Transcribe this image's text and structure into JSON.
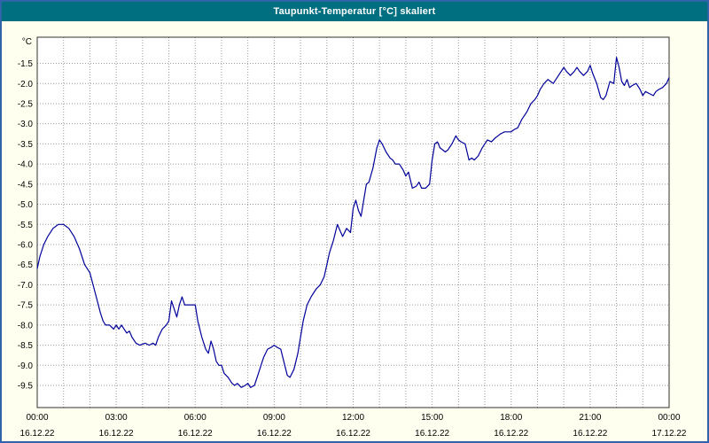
{
  "window": {
    "title": "Taupunkt-Temperatur [°C] skaliert"
  },
  "chart_data": {
    "type": "line",
    "title": "Taupunkt-Temperatur [°C] skaliert",
    "ylabel": "°C",
    "xlabel": "",
    "grid": "dotted",
    "legend": "none",
    "line_color": "#000099",
    "plot_background": "#ffffff",
    "outer_background": "#fffff0",
    "titlebar_color": "#006f80",
    "ylim": [
      -10.05,
      -0.85
    ],
    "xlim_hours": [
      0,
      24
    ],
    "y_tick_values": [
      -1.5,
      -2.0,
      -2.5,
      -3.0,
      -3.5,
      -4.0,
      -4.5,
      -5.0,
      -5.5,
      -6.0,
      -6.5,
      -7.0,
      -7.5,
      -8.0,
      -8.5,
      -9.0,
      -9.5
    ],
    "x_minor_grid_every_hours": 1,
    "x_ticks": [
      {
        "hour": 0,
        "time": "00:00",
        "date": "16.12.22"
      },
      {
        "hour": 3,
        "time": "03:00",
        "date": "16.12.22"
      },
      {
        "hour": 6,
        "time": "06:00",
        "date": "16.12.22"
      },
      {
        "hour": 9,
        "time": "09:00",
        "date": "16.12.22"
      },
      {
        "hour": 12,
        "time": "12:00",
        "date": "16.12.22"
      },
      {
        "hour": 15,
        "time": "15:00",
        "date": "16.12.22"
      },
      {
        "hour": 18,
        "time": "18:00",
        "date": "16.12.22"
      },
      {
        "hour": 21,
        "time": "21:00",
        "date": "16.12.22"
      },
      {
        "hour": 24,
        "time": "00:00",
        "date": "17.12.22"
      }
    ],
    "points": [
      [
        0.0,
        -6.6
      ],
      [
        0.1,
        -6.3
      ],
      [
        0.25,
        -6.0
      ],
      [
        0.4,
        -5.8
      ],
      [
        0.6,
        -5.6
      ],
      [
        0.8,
        -5.5
      ],
      [
        1.0,
        -5.5
      ],
      [
        1.2,
        -5.6
      ],
      [
        1.4,
        -5.8
      ],
      [
        1.6,
        -6.1
      ],
      [
        1.8,
        -6.5
      ],
      [
        2.0,
        -6.7
      ],
      [
        2.2,
        -7.2
      ],
      [
        2.4,
        -7.7
      ],
      [
        2.5,
        -7.9
      ],
      [
        2.6,
        -8.0
      ],
      [
        2.75,
        -8.0
      ],
      [
        2.9,
        -8.1
      ],
      [
        3.0,
        -8.0
      ],
      [
        3.1,
        -8.1
      ],
      [
        3.2,
        -8.0
      ],
      [
        3.4,
        -8.2
      ],
      [
        3.5,
        -8.15
      ],
      [
        3.6,
        -8.3
      ],
      [
        3.75,
        -8.45
      ],
      [
        3.9,
        -8.5
      ],
      [
        4.1,
        -8.45
      ],
      [
        4.25,
        -8.5
      ],
      [
        4.4,
        -8.45
      ],
      [
        4.5,
        -8.5
      ],
      [
        4.6,
        -8.3
      ],
      [
        4.75,
        -8.1
      ],
      [
        4.9,
        -8.0
      ],
      [
        5.0,
        -7.9
      ],
      [
        5.1,
        -7.4
      ],
      [
        5.2,
        -7.6
      ],
      [
        5.3,
        -7.8
      ],
      [
        5.4,
        -7.5
      ],
      [
        5.5,
        -7.3
      ],
      [
        5.6,
        -7.5
      ],
      [
        5.75,
        -7.5
      ],
      [
        5.9,
        -7.5
      ],
      [
        6.0,
        -7.5
      ],
      [
        6.1,
        -7.9
      ],
      [
        6.25,
        -8.3
      ],
      [
        6.4,
        -8.6
      ],
      [
        6.5,
        -8.7
      ],
      [
        6.6,
        -8.4
      ],
      [
        6.7,
        -8.6
      ],
      [
        6.8,
        -8.9
      ],
      [
        6.9,
        -9.0
      ],
      [
        7.0,
        -9.0
      ],
      [
        7.1,
        -9.2
      ],
      [
        7.25,
        -9.3
      ],
      [
        7.4,
        -9.45
      ],
      [
        7.5,
        -9.5
      ],
      [
        7.6,
        -9.45
      ],
      [
        7.75,
        -9.55
      ],
      [
        7.9,
        -9.5
      ],
      [
        8.0,
        -9.45
      ],
      [
        8.1,
        -9.55
      ],
      [
        8.25,
        -9.5
      ],
      [
        8.4,
        -9.2
      ],
      [
        8.5,
        -9.0
      ],
      [
        8.6,
        -8.8
      ],
      [
        8.75,
        -8.6
      ],
      [
        8.9,
        -8.55
      ],
      [
        9.0,
        -8.5
      ],
      [
        9.1,
        -8.55
      ],
      [
        9.25,
        -8.6
      ],
      [
        9.4,
        -9.0
      ],
      [
        9.5,
        -9.25
      ],
      [
        9.6,
        -9.3
      ],
      [
        9.75,
        -9.1
      ],
      [
        9.9,
        -8.7
      ],
      [
        10.0,
        -8.3
      ],
      [
        10.1,
        -7.9
      ],
      [
        10.25,
        -7.5
      ],
      [
        10.4,
        -7.3
      ],
      [
        10.5,
        -7.2
      ],
      [
        10.6,
        -7.1
      ],
      [
        10.75,
        -7.0
      ],
      [
        10.9,
        -6.8
      ],
      [
        11.0,
        -6.5
      ],
      [
        11.1,
        -6.2
      ],
      [
        11.25,
        -5.9
      ],
      [
        11.4,
        -5.5
      ],
      [
        11.5,
        -5.65
      ],
      [
        11.6,
        -5.8
      ],
      [
        11.75,
        -5.6
      ],
      [
        11.9,
        -5.7
      ],
      [
        12.0,
        -5.1
      ],
      [
        12.1,
        -4.9
      ],
      [
        12.2,
        -5.15
      ],
      [
        12.3,
        -5.3
      ],
      [
        12.4,
        -4.9
      ],
      [
        12.5,
        -4.5
      ],
      [
        12.6,
        -4.45
      ],
      [
        12.75,
        -4.1
      ],
      [
        12.9,
        -3.6
      ],
      [
        13.0,
        -3.4
      ],
      [
        13.1,
        -3.5
      ],
      [
        13.25,
        -3.7
      ],
      [
        13.4,
        -3.85
      ],
      [
        13.5,
        -3.9
      ],
      [
        13.6,
        -4.0
      ],
      [
        13.75,
        -4.0
      ],
      [
        13.9,
        -4.15
      ],
      [
        14.0,
        -4.3
      ],
      [
        14.1,
        -4.2
      ],
      [
        14.25,
        -4.6
      ],
      [
        14.4,
        -4.55
      ],
      [
        14.5,
        -4.45
      ],
      [
        14.6,
        -4.6
      ],
      [
        14.75,
        -4.6
      ],
      [
        14.9,
        -4.5
      ],
      [
        15.0,
        -3.9
      ],
      [
        15.1,
        -3.5
      ],
      [
        15.2,
        -3.45
      ],
      [
        15.3,
        -3.6
      ],
      [
        15.5,
        -3.7
      ],
      [
        15.6,
        -3.65
      ],
      [
        15.75,
        -3.5
      ],
      [
        15.9,
        -3.3
      ],
      [
        16.0,
        -3.4
      ],
      [
        16.1,
        -3.45
      ],
      [
        16.25,
        -3.5
      ],
      [
        16.4,
        -3.9
      ],
      [
        16.5,
        -3.85
      ],
      [
        16.6,
        -3.9
      ],
      [
        16.75,
        -3.8
      ],
      [
        16.9,
        -3.6
      ],
      [
        17.0,
        -3.5
      ],
      [
        17.1,
        -3.4
      ],
      [
        17.25,
        -3.45
      ],
      [
        17.4,
        -3.35
      ],
      [
        17.5,
        -3.3
      ],
      [
        17.6,
        -3.25
      ],
      [
        17.75,
        -3.2
      ],
      [
        17.9,
        -3.2
      ],
      [
        18.0,
        -3.2
      ],
      [
        18.1,
        -3.15
      ],
      [
        18.25,
        -3.1
      ],
      [
        18.4,
        -2.9
      ],
      [
        18.5,
        -2.8
      ],
      [
        18.6,
        -2.7
      ],
      [
        18.75,
        -2.5
      ],
      [
        18.9,
        -2.4
      ],
      [
        19.0,
        -2.3
      ],
      [
        19.1,
        -2.15
      ],
      [
        19.25,
        -2.0
      ],
      [
        19.4,
        -1.9
      ],
      [
        19.5,
        -1.95
      ],
      [
        19.6,
        -2.0
      ],
      [
        19.75,
        -1.85
      ],
      [
        19.9,
        -1.7
      ],
      [
        20.0,
        -1.6
      ],
      [
        20.1,
        -1.7
      ],
      [
        20.25,
        -1.8
      ],
      [
        20.4,
        -1.7
      ],
      [
        20.5,
        -1.6
      ],
      [
        20.6,
        -1.7
      ],
      [
        20.75,
        -1.8
      ],
      [
        20.9,
        -1.7
      ],
      [
        21.0,
        -1.55
      ],
      [
        21.1,
        -1.75
      ],
      [
        21.25,
        -2.0
      ],
      [
        21.4,
        -2.35
      ],
      [
        21.5,
        -2.4
      ],
      [
        21.6,
        -2.3
      ],
      [
        21.75,
        -1.95
      ],
      [
        21.9,
        -2.0
      ],
      [
        22.0,
        -1.35
      ],
      [
        22.1,
        -1.6
      ],
      [
        22.2,
        -1.95
      ],
      [
        22.3,
        -2.05
      ],
      [
        22.4,
        -1.9
      ],
      [
        22.5,
        -2.1
      ],
      [
        22.6,
        -2.05
      ],
      [
        22.75,
        -2.0
      ],
      [
        22.9,
        -2.15
      ],
      [
        23.0,
        -2.3
      ],
      [
        23.1,
        -2.2
      ],
      [
        23.25,
        -2.25
      ],
      [
        23.4,
        -2.3
      ],
      [
        23.5,
        -2.2
      ],
      [
        23.6,
        -2.15
      ],
      [
        23.75,
        -2.1
      ],
      [
        23.9,
        -2.0
      ],
      [
        24.0,
        -1.85
      ]
    ]
  }
}
